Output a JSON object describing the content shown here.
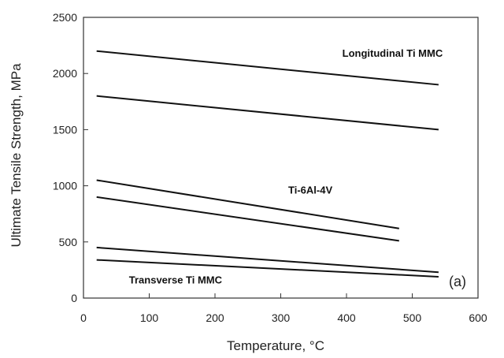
{
  "chart_data": {
    "type": "line",
    "xlabel": "Temperature, °C",
    "ylabel": "Ultimate Tensile Strength, MPa",
    "xlim": [
      0,
      600
    ],
    "ylim": [
      0,
      2500
    ],
    "xticks": [
      0,
      100,
      200,
      300,
      400,
      500,
      600
    ],
    "yticks": [
      0,
      500,
      1000,
      1500,
      2000,
      2500
    ],
    "grid": false,
    "panel_label": "(a)",
    "annotations": [
      {
        "text": "Longitudinal Ti MMC",
        "x": 470,
        "y": 2150
      },
      {
        "text": "Ti-6Al-4V",
        "x": 345,
        "y": 930
      },
      {
        "text": "Transverse Ti MMC",
        "x": 140,
        "y": 130
      }
    ],
    "series": [
      {
        "x": [
          20,
          540
        ],
        "y": [
          2200,
          1900
        ]
      },
      {
        "x": [
          20,
          540
        ],
        "y": [
          1800,
          1500
        ]
      },
      {
        "x": [
          20,
          480
        ],
        "y": [
          1050,
          620
        ]
      },
      {
        "x": [
          20,
          480
        ],
        "y": [
          900,
          510
        ]
      },
      {
        "x": [
          20,
          540
        ],
        "y": [
          450,
          230
        ]
      },
      {
        "x": [
          20,
          540
        ],
        "y": [
          340,
          190
        ]
      }
    ],
    "line_color": "#111111"
  }
}
